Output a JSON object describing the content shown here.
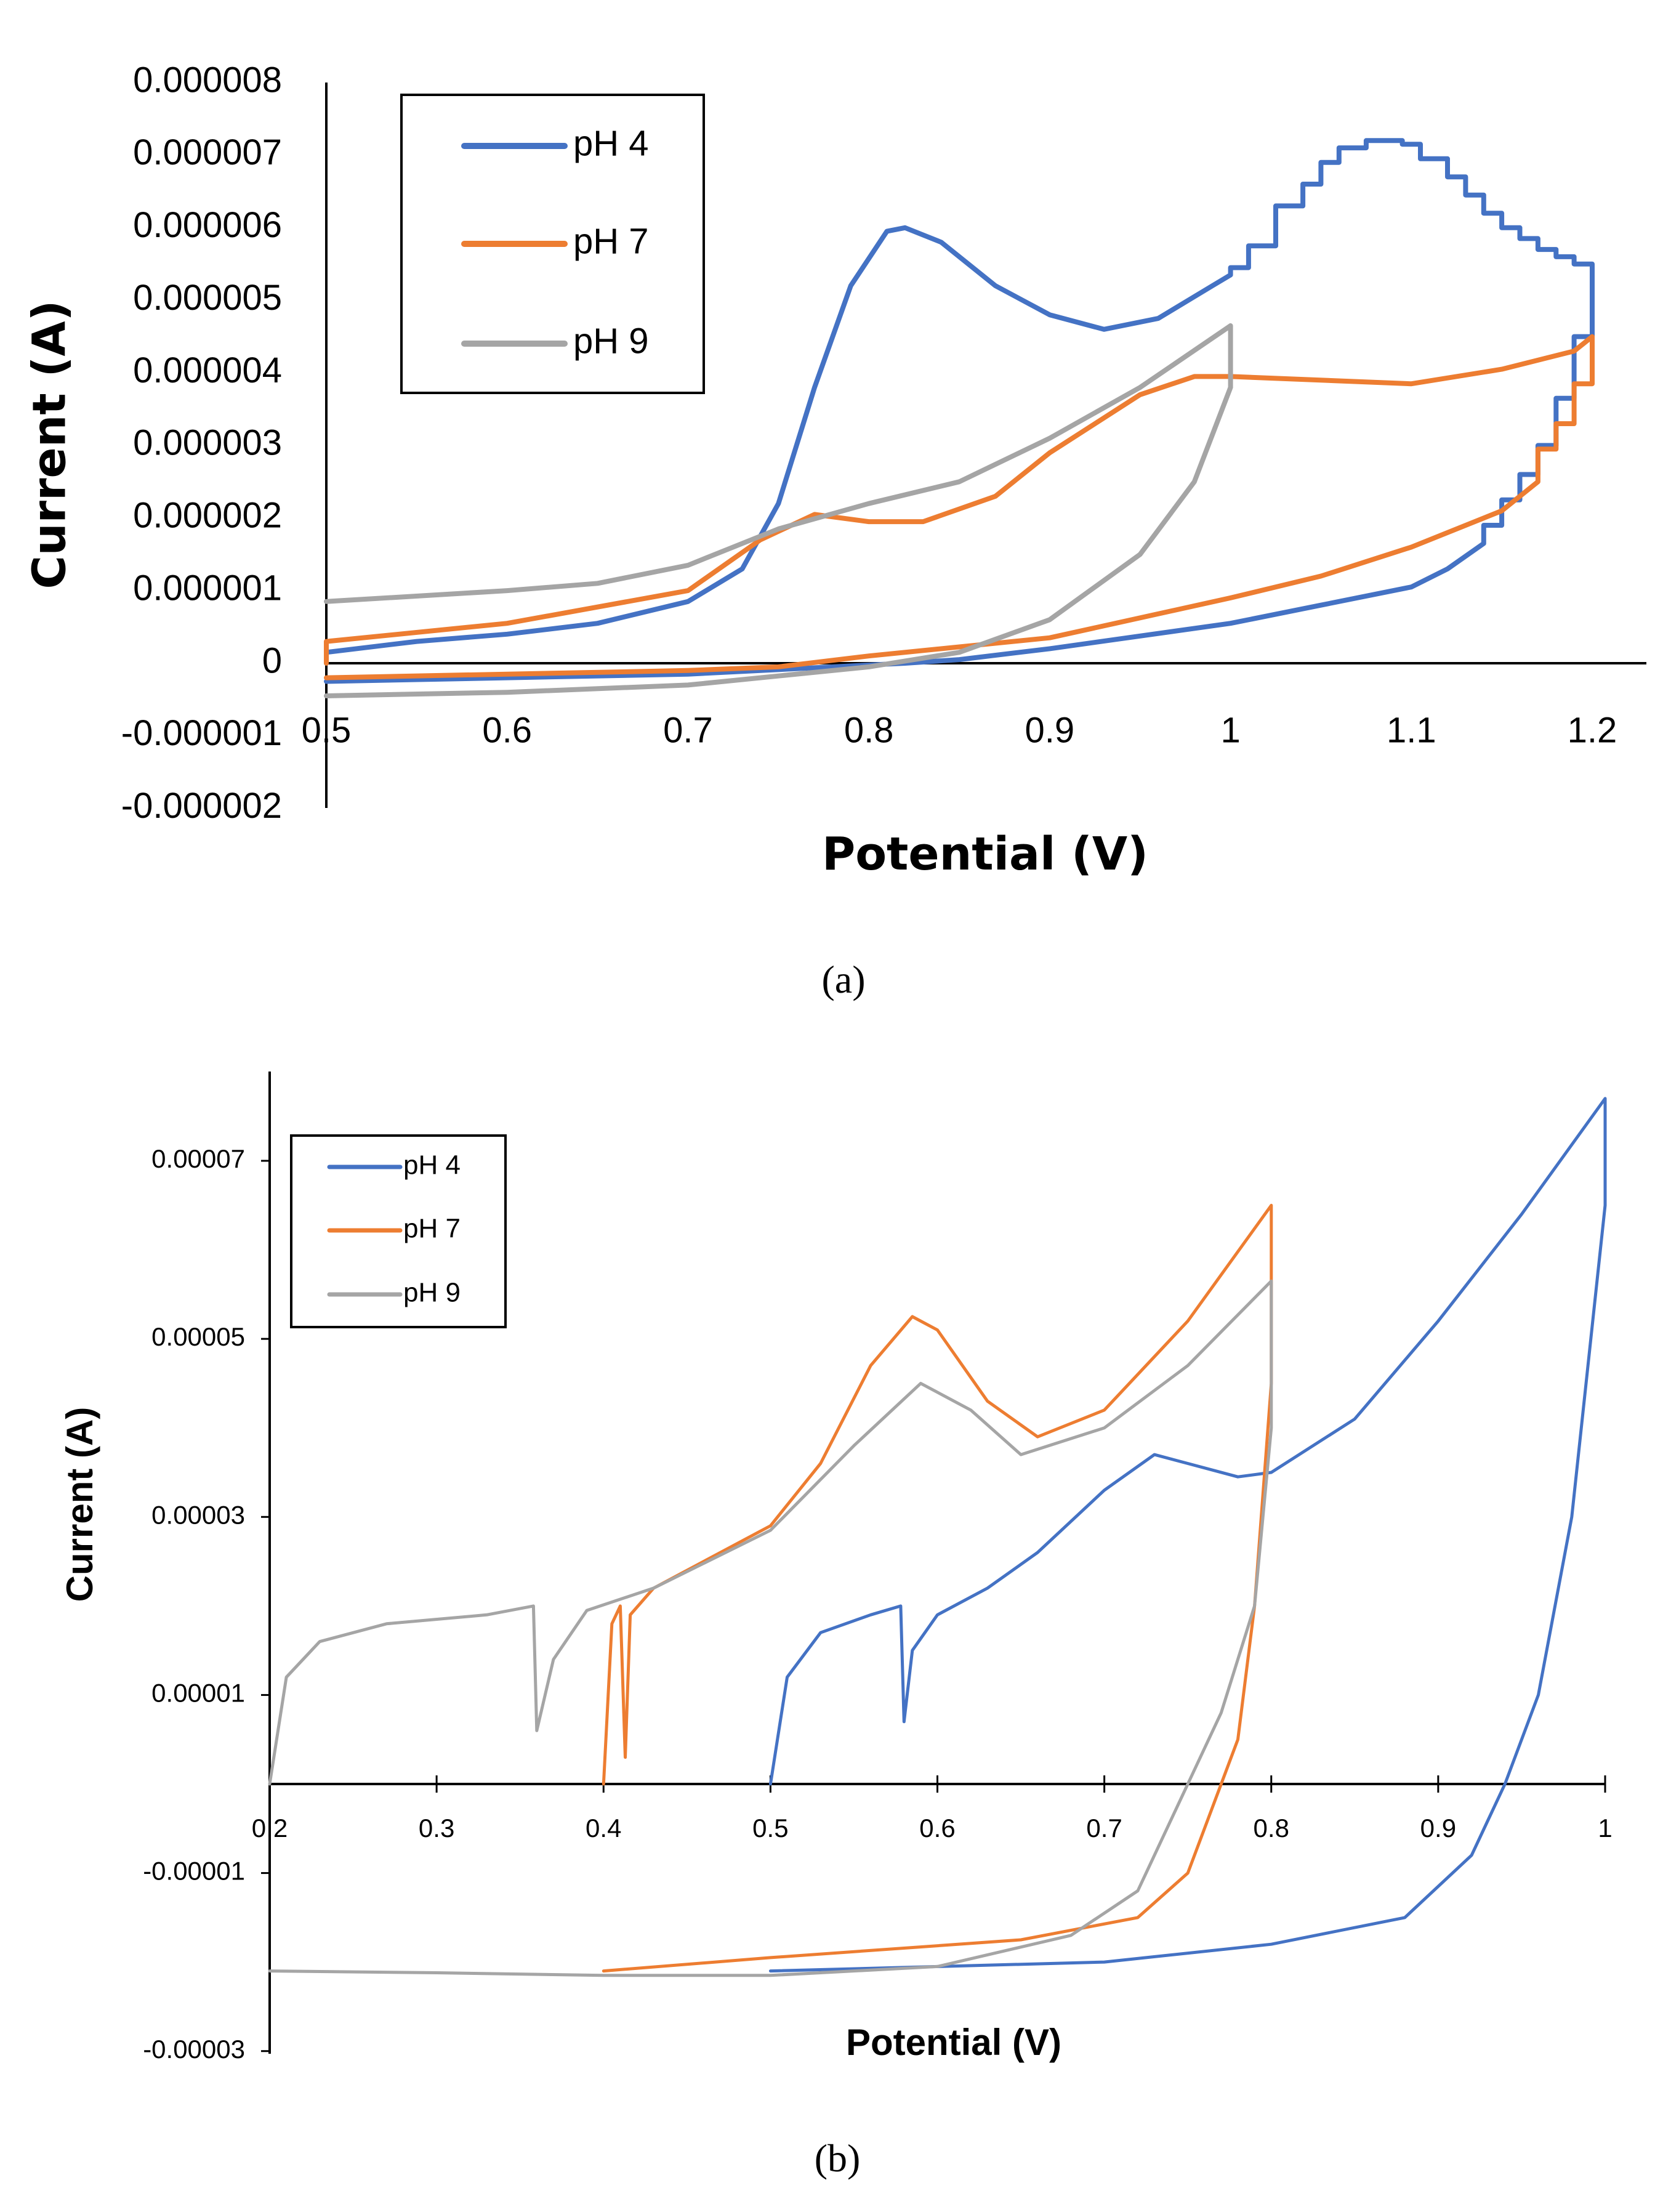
{
  "chart_data": [
    {
      "id": "a",
      "type": "line",
      "caption": "(a)",
      "xlabel": "Potential (V)",
      "ylabel": "Current (A)",
      "xlim": [
        0.5,
        1.2
      ],
      "ylim": [
        -2e-06,
        8e-06
      ],
      "xticks": [
        0.5,
        0.6,
        0.7,
        0.8,
        0.9,
        1.0,
        1.1,
        1.2
      ],
      "xtick_labels": [
        "0.5",
        "0.6",
        "0.7",
        "0.8",
        "0.9",
        "1",
        "1.1",
        "1.2"
      ],
      "yticks": [
        8e-06,
        7e-06,
        6e-06,
        5e-06,
        4e-06,
        3e-06,
        2e-06,
        1e-06,
        0,
        -1e-06,
        -2e-06
      ],
      "ytick_labels": [
        "0.000008",
        "0.000007",
        "0.000006",
        "0.000005",
        "0.000004",
        "0.000003",
        "0.000002",
        "0.000001",
        "0",
        "-0.000001",
        "-0.000002"
      ],
      "legend": "top-left",
      "grid": false,
      "series": [
        {
          "name": "pH 4",
          "color": "#4472C4",
          "points": [
            [
              0.5,
              0.0
            ],
            [
              0.5,
              1.5e-07
            ],
            [
              0.55,
              3e-07
            ],
            [
              0.6,
              4e-07
            ],
            [
              0.65,
              5.5e-07
            ],
            [
              0.7,
              8.5e-07
            ],
            [
              0.73,
              1.3e-06
            ],
            [
              0.75,
              2.2e-06
            ],
            [
              0.77,
              3.8e-06
            ],
            [
              0.79,
              5.2e-06
            ],
            [
              0.81,
              5.95e-06
            ],
            [
              0.82,
              6e-06
            ],
            [
              0.84,
              5.8e-06
            ],
            [
              0.87,
              5.2e-06
            ],
            [
              0.9,
              4.8e-06
            ],
            [
              0.93,
              4.6e-06
            ],
            [
              0.96,
              4.75e-06
            ],
            [
              0.99,
              5.2e-06
            ],
            [
              1.0,
              5.35e-06
            ],
            [
              1.0,
              5.45e-06
            ],
            [
              1.01,
              5.45e-06
            ],
            [
              1.01,
              5.75e-06
            ],
            [
              1.025,
              5.75e-06
            ],
            [
              1.025,
              6.3e-06
            ],
            [
              1.04,
              6.3e-06
            ],
            [
              1.04,
              6.6e-06
            ],
            [
              1.05,
              6.6e-06
            ],
            [
              1.05,
              6.9e-06
            ],
            [
              1.06,
              6.9e-06
            ],
            [
              1.06,
              7.1e-06
            ],
            [
              1.075,
              7.1e-06
            ],
            [
              1.075,
              7.2e-06
            ],
            [
              1.095,
              7.2e-06
            ],
            [
              1.095,
              7.15e-06
            ],
            [
              1.105,
              7.15e-06
            ],
            [
              1.105,
              6.95e-06
            ],
            [
              1.12,
              6.95e-06
            ],
            [
              1.12,
              6.7e-06
            ],
            [
              1.13,
              6.7e-06
            ],
            [
              1.13,
              6.45e-06
            ],
            [
              1.14,
              6.45e-06
            ],
            [
              1.14,
              6.2e-06
            ],
            [
              1.15,
              6.2e-06
            ],
            [
              1.15,
              6e-06
            ],
            [
              1.16,
              6e-06
            ],
            [
              1.16,
              5.85e-06
            ],
            [
              1.17,
              5.85e-06
            ],
            [
              1.17,
              5.7e-06
            ],
            [
              1.18,
              5.7e-06
            ],
            [
              1.18,
              5.6e-06
            ],
            [
              1.19,
              5.6e-06
            ],
            [
              1.19,
              5.5e-06
            ],
            [
              1.2,
              5.5e-06
            ],
            [
              1.2,
              4.5e-06
            ],
            [
              1.19,
              4.5e-06
            ],
            [
              1.19,
              3.65e-06
            ],
            [
              1.18,
              3.65e-06
            ],
            [
              1.18,
              3e-06
            ],
            [
              1.17,
              3e-06
            ],
            [
              1.17,
              2.6e-06
            ],
            [
              1.16,
              2.6e-06
            ],
            [
              1.16,
              2.25e-06
            ],
            [
              1.15,
              2.25e-06
            ],
            [
              1.15,
              1.9e-06
            ],
            [
              1.14,
              1.9e-06
            ],
            [
              1.14,
              1.65e-06
            ],
            [
              1.12,
              1.3e-06
            ],
            [
              1.1,
              1.05e-06
            ],
            [
              1.05,
              8e-07
            ],
            [
              1.0,
              5.5e-07
            ],
            [
              0.9,
              2e-07
            ],
            [
              0.85,
              5e-08
            ],
            [
              0.82,
              0.0
            ],
            [
              0.7,
              -1.5e-07
            ],
            [
              0.6,
              -2e-07
            ],
            [
              0.5,
              -2.5e-07
            ]
          ]
        },
        {
          "name": "pH 7",
          "color": "#ED7D31",
          "points": [
            [
              0.5,
              0.0
            ],
            [
              0.5,
              3e-07
            ],
            [
              0.6,
              5.5e-07
            ],
            [
              0.7,
              1e-06
            ],
            [
              0.74,
              1.7e-06
            ],
            [
              0.77,
              2.05e-06
            ],
            [
              0.8,
              1.95e-06
            ],
            [
              0.83,
              1.95e-06
            ],
            [
              0.87,
              2.3e-06
            ],
            [
              0.9,
              2.9e-06
            ],
            [
              0.95,
              3.7e-06
            ],
            [
              0.98,
              3.95e-06
            ],
            [
              1.0,
              3.95e-06
            ],
            [
              1.1,
              3.85e-06
            ],
            [
              1.15,
              4.05e-06
            ],
            [
              1.19,
              4.3e-06
            ],
            [
              1.2,
              4.5e-06
            ],
            [
              1.2,
              3.85e-06
            ],
            [
              1.19,
              3.85e-06
            ],
            [
              1.19,
              3.3e-06
            ],
            [
              1.18,
              3.3e-06
            ],
            [
              1.18,
              2.95e-06
            ],
            [
              1.17,
              2.95e-06
            ],
            [
              1.17,
              2.5e-06
            ],
            [
              1.15,
              2.1e-06
            ],
            [
              1.1,
              1.6e-06
            ],
            [
              1.05,
              1.2e-06
            ],
            [
              1.0,
              9e-07
            ],
            [
              0.9,
              3.5e-07
            ],
            [
              0.8,
              1e-07
            ],
            [
              0.75,
              -5e-08
            ],
            [
              0.7,
              -1e-07
            ],
            [
              0.6,
              -1.5e-07
            ],
            [
              0.5,
              -2e-07
            ]
          ]
        },
        {
          "name": "pH 9",
          "color": "#A5A5A5",
          "points": [
            [
              0.5,
              8.5e-07
            ],
            [
              0.6,
              1e-06
            ],
            [
              0.65,
              1.1e-06
            ],
            [
              0.7,
              1.35e-06
            ],
            [
              0.75,
              1.85e-06
            ],
            [
              0.8,
              2.2e-06
            ],
            [
              0.85,
              2.5e-06
            ],
            [
              0.9,
              3.1e-06
            ],
            [
              0.95,
              3.8e-06
            ],
            [
              1.0,
              4.65e-06
            ],
            [
              1.0,
              3.8e-06
            ],
            [
              0.98,
              2.5e-06
            ],
            [
              0.95,
              1.5e-06
            ],
            [
              0.9,
              6e-07
            ],
            [
              0.85,
              1.5e-07
            ],
            [
              0.8,
              -5e-08
            ],
            [
              0.7,
              -3e-07
            ],
            [
              0.6,
              -4e-07
            ],
            [
              0.5,
              -4.5e-07
            ]
          ]
        }
      ]
    },
    {
      "id": "b",
      "type": "line",
      "caption": "(b)",
      "xlabel": "Potential (V)",
      "ylabel": "Current (A)",
      "xlim": [
        0.2,
        1.0
      ],
      "ylim": [
        -3e-05,
        8e-05
      ],
      "xticks": [
        0.2,
        0.3,
        0.4,
        0.5,
        0.6,
        0.7,
        0.8,
        0.9,
        1.0
      ],
      "xtick_labels": [
        "0.2",
        "0.3",
        "0.4",
        "0.5",
        "0.6",
        "0.7",
        "0.8",
        "0.9",
        "1"
      ],
      "yticks": [
        7e-05,
        5e-05,
        3e-05,
        1e-05,
        -1e-05,
        -3e-05
      ],
      "ytick_labels": [
        "0.00007",
        "0.00005",
        "0.00003",
        "0.00001",
        "-0.00001",
        "-0.00003"
      ],
      "legend": "top-left",
      "grid": false,
      "series": [
        {
          "name": "pH 4",
          "color": "#4472C4",
          "points": [
            [
              0.5,
              0.0
            ],
            [
              0.51,
              1.2e-05
            ],
            [
              0.53,
              1.7e-05
            ],
            [
              0.56,
              1.9e-05
            ],
            [
              0.578,
              2e-05
            ],
            [
              0.58,
              7e-06
            ],
            [
              0.585,
              1.5e-05
            ],
            [
              0.6,
              1.9e-05
            ],
            [
              0.63,
              2.2e-05
            ],
            [
              0.66,
              2.6e-05
            ],
            [
              0.7,
              3.3e-05
            ],
            [
              0.73,
              3.7e-05
            ],
            [
              0.75,
              3.6e-05
            ],
            [
              0.78,
              3.45e-05
            ],
            [
              0.8,
              3.5e-05
            ],
            [
              0.85,
              4.1e-05
            ],
            [
              0.9,
              5.2e-05
            ],
            [
              0.95,
              6.4e-05
            ],
            [
              1.0,
              7.7e-05
            ],
            [
              1.0,
              6.5e-05
            ],
            [
              0.98,
              3e-05
            ],
            [
              0.96,
              1e-05
            ],
            [
              0.94,
              0.0
            ],
            [
              0.92,
              -8e-06
            ],
            [
              0.88,
              -1.5e-05
            ],
            [
              0.8,
              -1.8e-05
            ],
            [
              0.7,
              -2e-05
            ],
            [
              0.6,
              -2.05e-05
            ],
            [
              0.5,
              -2.1e-05
            ]
          ]
        },
        {
          "name": "pH 7",
          "color": "#ED7D31",
          "points": [
            [
              0.4,
              0.0
            ],
            [
              0.405,
              1.8e-05
            ],
            [
              0.41,
              2e-05
            ],
            [
              0.413,
              3e-06
            ],
            [
              0.416,
              1.9e-05
            ],
            [
              0.43,
              2.2e-05
            ],
            [
              0.47,
              2.6e-05
            ],
            [
              0.5,
              2.9e-05
            ],
            [
              0.53,
              3.6e-05
            ],
            [
              0.56,
              4.7e-05
            ],
            [
              0.585,
              5.25e-05
            ],
            [
              0.6,
              5.1e-05
            ],
            [
              0.63,
              4.3e-05
            ],
            [
              0.66,
              3.9e-05
            ],
            [
              0.7,
              4.2e-05
            ],
            [
              0.75,
              5.2e-05
            ],
            [
              0.8,
              6.5e-05
            ],
            [
              0.8,
              4.5e-05
            ],
            [
              0.79,
              2e-05
            ],
            [
              0.78,
              5e-06
            ],
            [
              0.77,
              0.0
            ],
            [
              0.75,
              -1e-05
            ],
            [
              0.72,
              -1.5e-05
            ],
            [
              0.65,
              -1.75e-05
            ],
            [
              0.5,
              -1.95e-05
            ],
            [
              0.4,
              -2.1e-05
            ]
          ]
        },
        {
          "name": "pH 9",
          "color": "#A5A5A5",
          "points": [
            [
              0.2,
              0.0
            ],
            [
              0.21,
              1.2e-05
            ],
            [
              0.23,
              1.6e-05
            ],
            [
              0.27,
              1.8e-05
            ],
            [
              0.33,
              1.9e-05
            ],
            [
              0.358,
              2e-05
            ],
            [
              0.36,
              6e-06
            ],
            [
              0.37,
              1.4e-05
            ],
            [
              0.39,
              1.95e-05
            ],
            [
              0.43,
              2.2e-05
            ],
            [
              0.5,
              2.85e-05
            ],
            [
              0.55,
              3.8e-05
            ],
            [
              0.59,
              4.5e-05
            ],
            [
              0.62,
              4.2e-05
            ],
            [
              0.65,
              3.7e-05
            ],
            [
              0.7,
              4e-05
            ],
            [
              0.75,
              4.7e-05
            ],
            [
              0.8,
              5.65e-05
            ],
            [
              0.8,
              4e-05
            ],
            [
              0.79,
              2e-05
            ],
            [
              0.77,
              8e-06
            ],
            [
              0.75,
              0.0
            ],
            [
              0.72,
              -1.2e-05
            ],
            [
              0.68,
              -1.7e-05
            ],
            [
              0.6,
              -2.05e-05
            ],
            [
              0.5,
              -2.15e-05
            ],
            [
              0.4,
              -2.15e-05
            ],
            [
              0.3,
              -2.12e-05
            ],
            [
              0.2,
              -2.1e-05
            ]
          ]
        }
      ]
    }
  ]
}
